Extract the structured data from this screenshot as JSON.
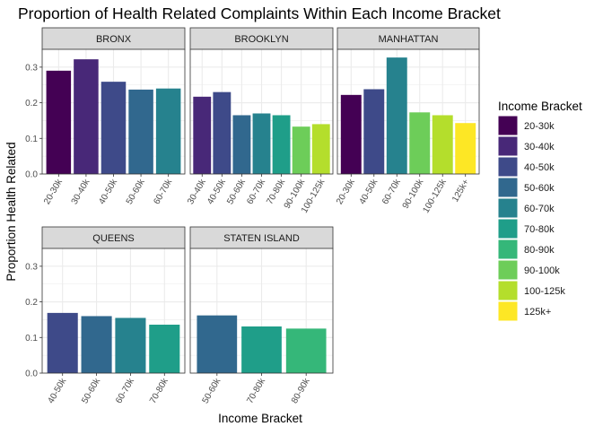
{
  "chart_data": {
    "type": "bar",
    "title": "Proportion of Health Related Complaints Within Each Income Bracket",
    "xlabel": "Income Bracket",
    "ylabel": "Proportion Health Related",
    "ylim": [
      0,
      0.35
    ],
    "yticks": [
      0.0,
      0.1,
      0.2,
      0.3
    ],
    "ytick_labels": [
      "0.0",
      "0.1",
      "0.2",
      "0.3"
    ],
    "grid": true,
    "legend": {
      "title": "Income Bracket",
      "position": "right",
      "items": [
        {
          "label": "20-30k",
          "color": "#440154"
        },
        {
          "label": "30-40k",
          "color": "#482878"
        },
        {
          "label": "40-50k",
          "color": "#3E4A89"
        },
        {
          "label": "50-60k",
          "color": "#31688E"
        },
        {
          "label": "60-70k",
          "color": "#26828E"
        },
        {
          "label": "70-80k",
          "color": "#1F9E89"
        },
        {
          "label": "80-90k",
          "color": "#35B779"
        },
        {
          "label": "90-100k",
          "color": "#6DCD59"
        },
        {
          "label": "100-125k",
          "color": "#B4DE2C"
        },
        {
          "label": "125k+",
          "color": "#FDE725"
        }
      ]
    },
    "panels": [
      {
        "name": "BRONX",
        "categories": [
          "20-30k",
          "30-40k",
          "40-50k",
          "50-60k",
          "60-70k"
        ],
        "values": [
          0.29,
          0.322,
          0.259,
          0.237,
          0.24
        ]
      },
      {
        "name": "BROOKLYN",
        "categories": [
          "30-40k",
          "40-50k",
          "50-60k",
          "60-70k",
          "70-80k",
          "90-100k",
          "100-125k"
        ],
        "values": [
          0.217,
          0.23,
          0.165,
          0.17,
          0.165,
          0.133,
          0.14
        ]
      },
      {
        "name": "MANHATTAN",
        "categories": [
          "20-30k",
          "40-50k",
          "60-70k",
          "90-100k",
          "100-125k",
          "125k+"
        ],
        "values": [
          0.222,
          0.238,
          0.327,
          0.173,
          0.165,
          0.143
        ]
      },
      {
        "name": "QUEENS",
        "categories": [
          "40-50k",
          "50-60k",
          "60-70k",
          "70-80k"
        ],
        "values": [
          0.169,
          0.16,
          0.155,
          0.136
        ]
      },
      {
        "name": "STATEN ISLAND",
        "categories": [
          "50-60k",
          "70-80k",
          "80-90k"
        ],
        "values": [
          0.162,
          0.131,
          0.125
        ]
      }
    ]
  }
}
